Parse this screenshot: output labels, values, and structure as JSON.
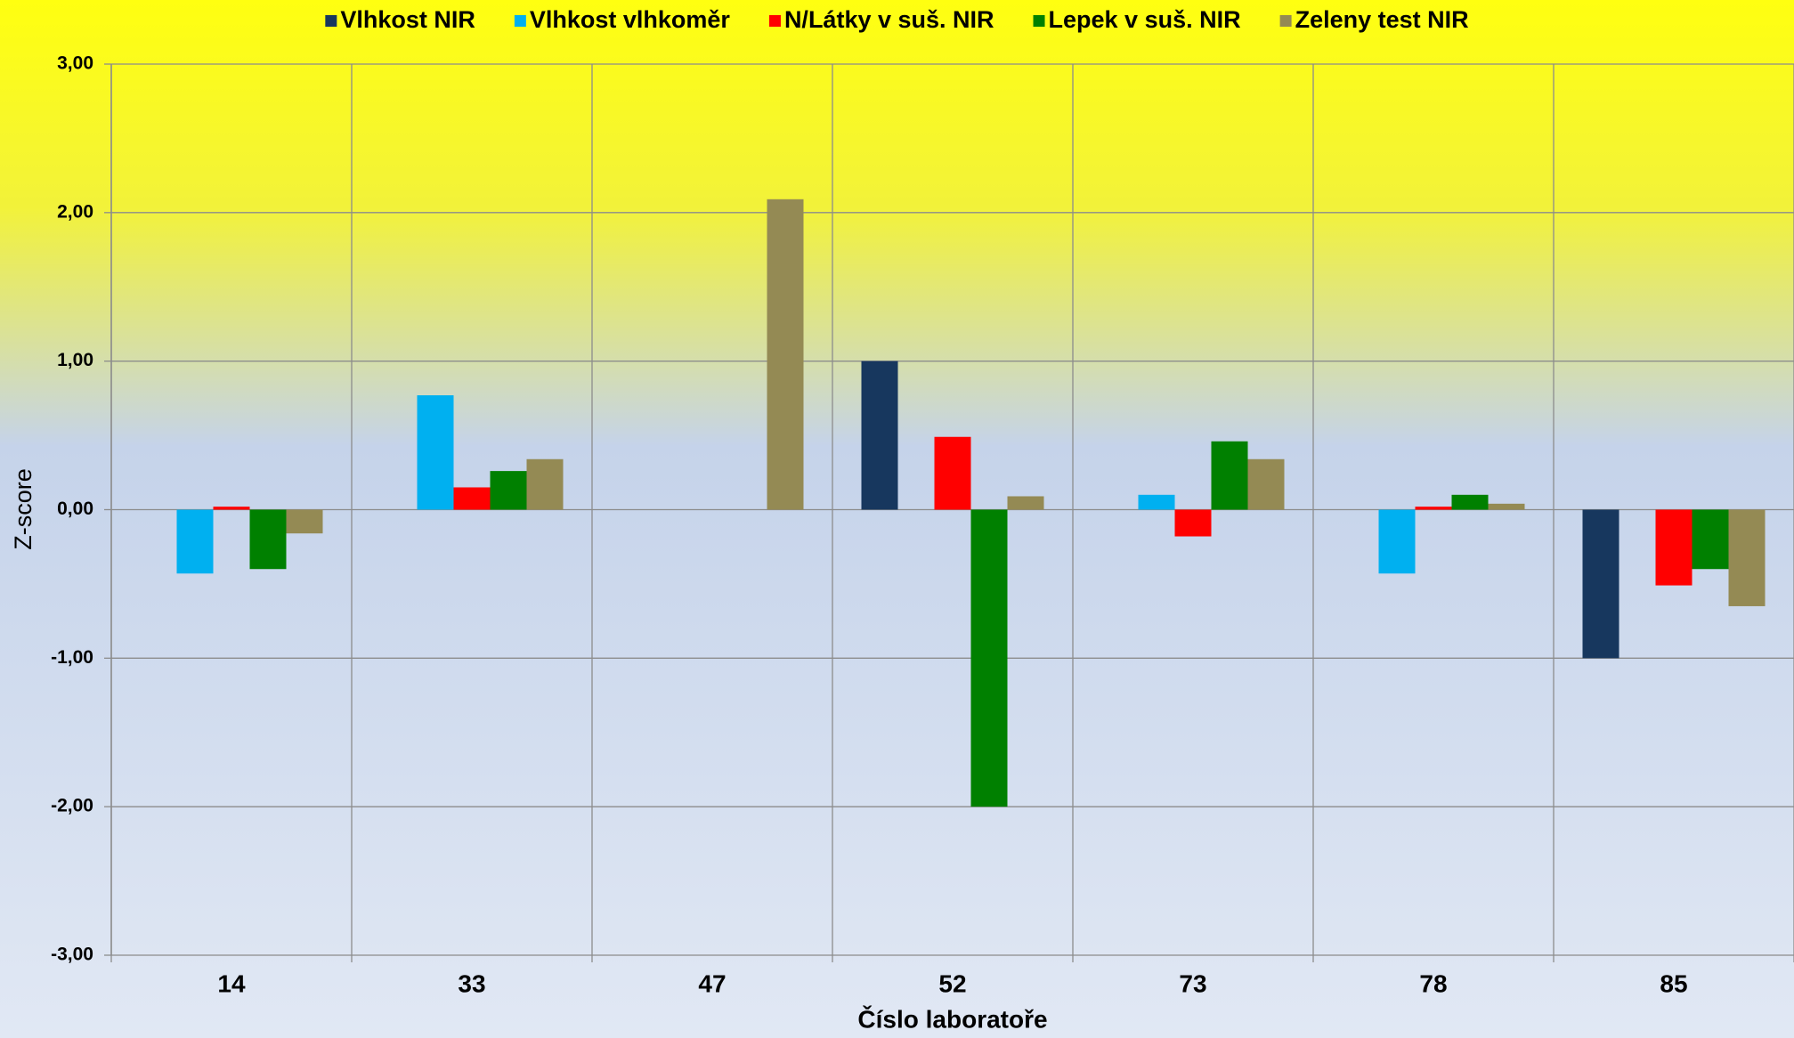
{
  "chart_data": {
    "type": "bar",
    "x_label": "Číslo laboratoře",
    "y_label": "Z-score",
    "categories": [
      "14",
      "33",
      "47",
      "52",
      "73",
      "78",
      "85"
    ],
    "series": [
      {
        "name": "Vlhkost NIR",
        "color": "#17375e",
        "values": [
          null,
          null,
          null,
          1.0,
          null,
          null,
          -1.0
        ]
      },
      {
        "name": "Vlhkost vlhkoměr",
        "color": "#00b0f0",
        "values": [
          -0.43,
          0.77,
          null,
          null,
          0.1,
          -0.43,
          null
        ]
      },
      {
        "name": "N/Látky v suš. NIR",
        "color": "#ff0000",
        "values": [
          0.02,
          0.15,
          null,
          0.49,
          -0.18,
          0.02,
          -0.51
        ]
      },
      {
        "name": "Lepek v suš. NIR",
        "color": "#008000",
        "values": [
          -0.4,
          0.26,
          null,
          -2.0,
          0.46,
          0.1,
          -0.4
        ]
      },
      {
        "name": "Zeleny test NIR",
        "color": "#948a54",
        "values": [
          -0.16,
          0.34,
          2.09,
          0.09,
          0.34,
          0.04,
          -0.65
        ]
      }
    ],
    "ylim": [
      -3,
      3
    ],
    "yticks": [
      {
        "value": -3,
        "label": "-3,00"
      },
      {
        "value": -2,
        "label": "-2,00"
      },
      {
        "value": -1,
        "label": "-1,00"
      },
      {
        "value": 0,
        "label": "0,00"
      },
      {
        "value": 1,
        "label": "1,00"
      },
      {
        "value": 2,
        "label": "2,00"
      },
      {
        "value": 3,
        "label": "3,00"
      }
    ],
    "grid": true,
    "legend": "top"
  }
}
